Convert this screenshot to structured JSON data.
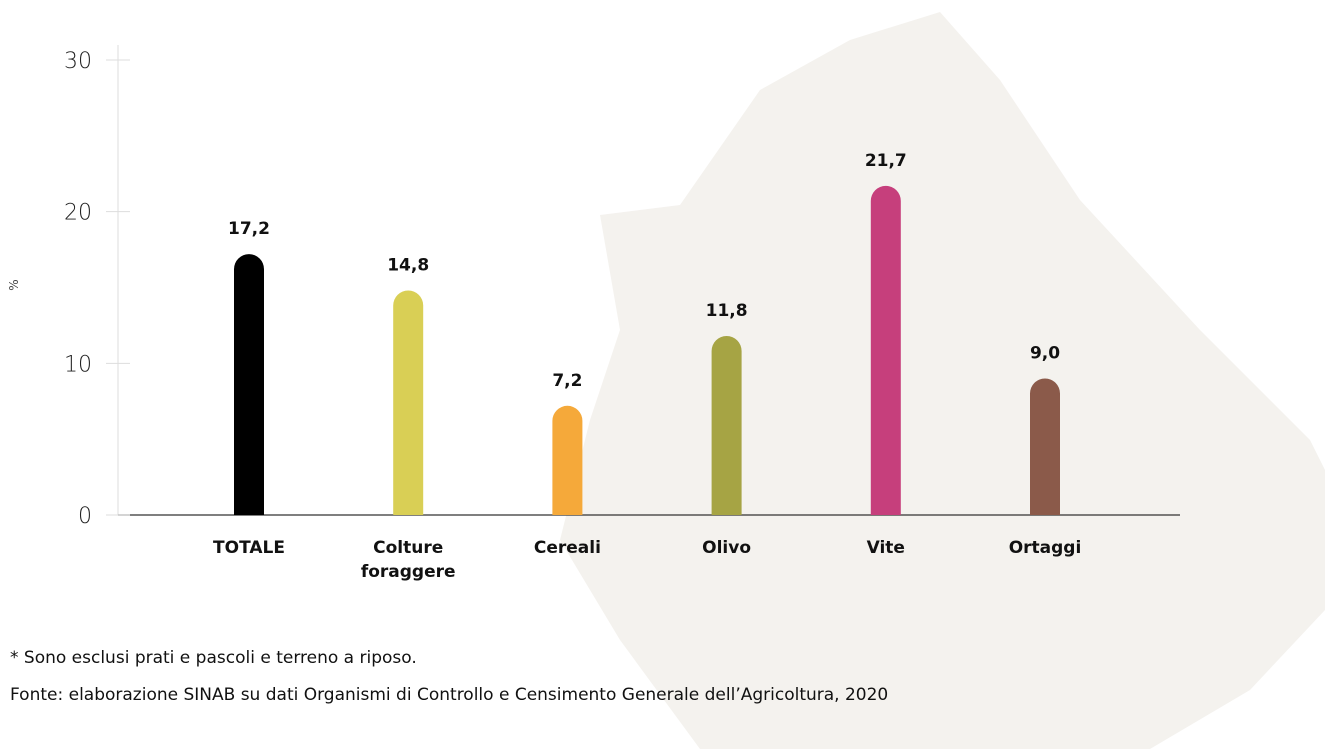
{
  "chart_data": {
    "type": "bar",
    "y_label": "%",
    "categories": [
      "TOTALE",
      "Colture foraggere",
      "Cereali",
      "Olivo",
      "Vite",
      "Ortaggi"
    ],
    "values": [
      17.2,
      14.8,
      7.2,
      11.8,
      21.7,
      9.0
    ],
    "value_labels": [
      "17,2",
      "14,8",
      "7,2",
      "11,8",
      "21,7",
      "9,0"
    ],
    "colors": [
      "#000000",
      "#d9cf55",
      "#f5a93a",
      "#a6a444",
      "#c63f7c",
      "#8b5a4a"
    ],
    "ylim": [
      0,
      30
    ],
    "yticks": [
      0,
      10,
      20,
      30
    ],
    "notes": [
      "* Sono esclusi prati e pascoli e terreno a riposo.",
      "Fonte: elaborazione SINAB su dati Organismi di Controllo e Censimento Generale dell’Agricoltura, 2020"
    ]
  }
}
